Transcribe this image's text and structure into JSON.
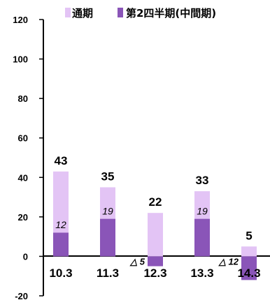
{
  "chart_data": {
    "type": "bar",
    "categories": [
      "10.3",
      "11.3",
      "12.3",
      "13.3",
      "14.3"
    ],
    "series": [
      {
        "name": "通期",
        "values": [
          43,
          35,
          22,
          33,
          5
        ],
        "color": "#e3c4f5"
      },
      {
        "name": "第2四半期(中間期)",
        "values": [
          12,
          19,
          -5,
          19,
          -12
        ],
        "color": "#8a55b8"
      }
    ],
    "total_labels": [
      "43",
      "35",
      "22",
      "33",
      "5"
    ],
    "inner_labels": [
      "12",
      "19",
      "",
      "19",
      ""
    ],
    "negative_labels": [
      "",
      "",
      "△ 5",
      "",
      "△ 12"
    ],
    "yticks": [
      "120",
      "100",
      "80",
      "60",
      "40",
      "20",
      "0",
      "-20"
    ],
    "ylim": [
      -20,
      120
    ],
    "grid": false,
    "legend_position": "top"
  }
}
